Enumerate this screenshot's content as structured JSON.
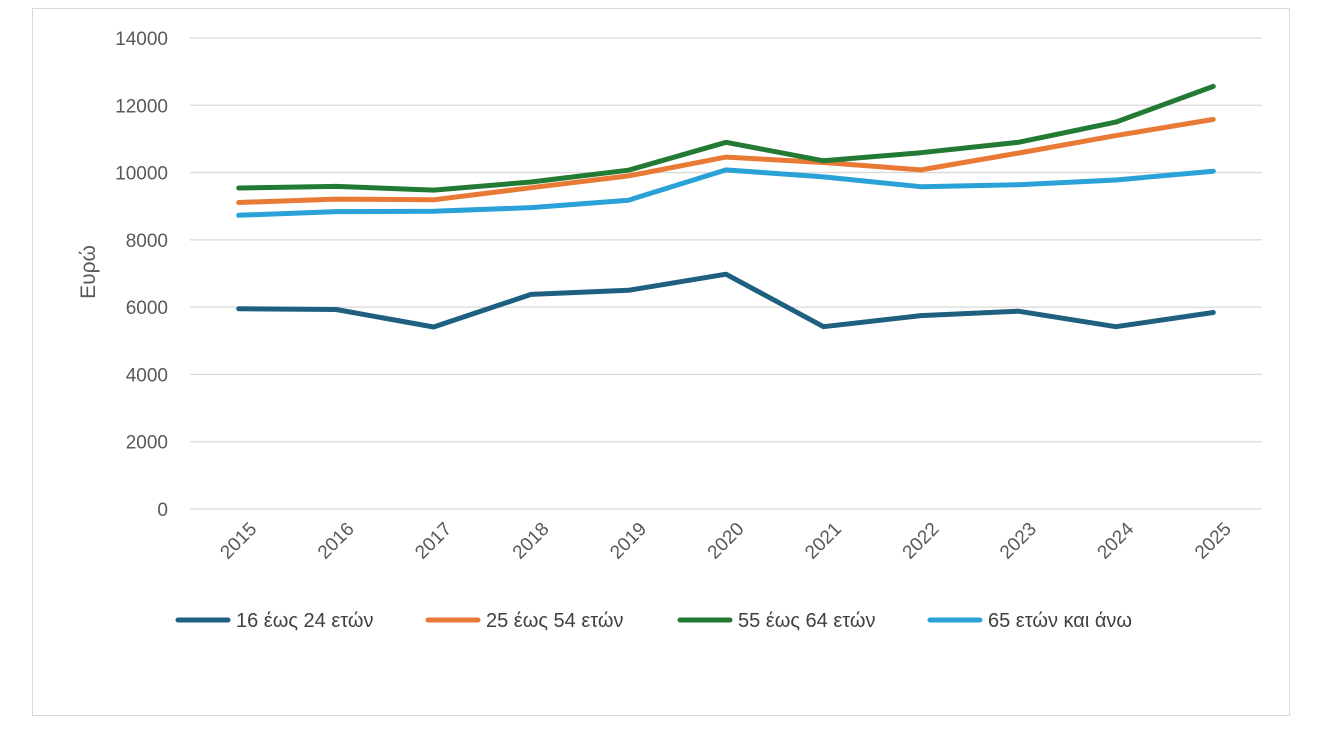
{
  "chart_data": {
    "type": "line",
    "title": "",
    "xlabel": "",
    "ylabel": "Ευρώ",
    "ylim": [
      0,
      14000
    ],
    "yticks": [
      0,
      2000,
      4000,
      6000,
      8000,
      10000,
      12000,
      14000
    ],
    "grid": true,
    "legend_position": "bottom",
    "categories": [
      "2015",
      "2016",
      "2017",
      "2018",
      "2019",
      "2020",
      "2021",
      "2022",
      "2023",
      "2024",
      "2025"
    ],
    "series": [
      {
        "name": "16 έως 24 ετών",
        "color": "#1f5f80",
        "values": [
          5950,
          5930,
          5410,
          6380,
          6500,
          6980,
          5420,
          5750,
          5880,
          5420,
          5840
        ]
      },
      {
        "name": "25 έως 54 ετών",
        "color": "#e87a35",
        "values": [
          9110,
          9210,
          9190,
          9550,
          9900,
          10460,
          10300,
          10080,
          10580,
          11100,
          11580
        ]
      },
      {
        "name": "55 έως 64 ετών",
        "color": "#237a33",
        "values": [
          9540,
          9590,
          9480,
          9720,
          10070,
          10900,
          10350,
          10590,
          10900,
          11500,
          12560
        ]
      },
      {
        "name": "65 ετών και άνω",
        "color": "#2aa2d8",
        "values": [
          8730,
          8840,
          8850,
          8960,
          9180,
          10080,
          9870,
          9580,
          9640,
          9780,
          10040
        ]
      }
    ]
  }
}
